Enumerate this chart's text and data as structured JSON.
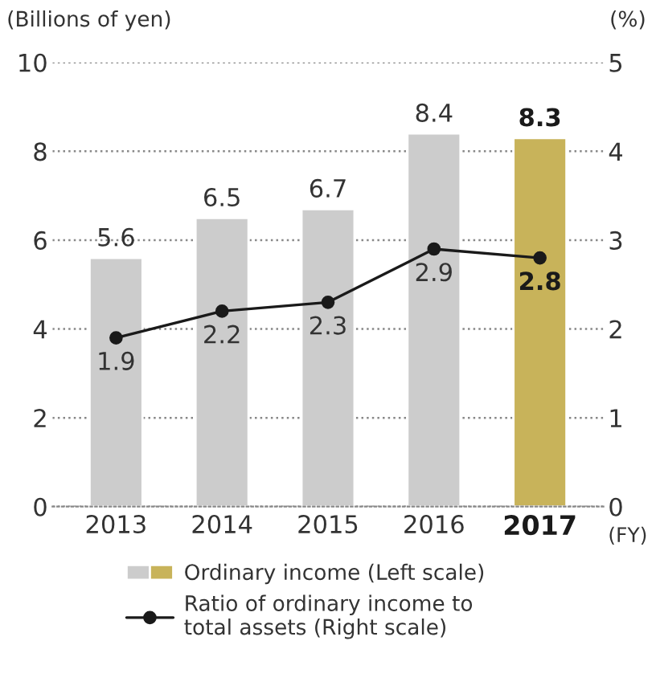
{
  "chart_data": {
    "type": "bar",
    "categories": [
      "2013",
      "2014",
      "2015",
      "2016",
      "2017"
    ],
    "xlabel": "(FY)",
    "ylabel": "(Billions of yen)",
    "y2label": "(%)",
    "series": [
      {
        "name": "Ordinary income (Left scale)",
        "colors": [
          "#cccccc",
          "#cccccc",
          "#cccccc",
          "#cccccc",
          "#c8b35a"
        ],
        "values": [
          5.6,
          6.5,
          6.7,
          8.4,
          8.3
        ]
      },
      {
        "name": "Ratio of ordinary income to\ntotal assets (Right scale)",
        "type": "line",
        "axis": "y2",
        "color": "#1a1a1a",
        "marker": "circle",
        "values": [
          1.9,
          2.2,
          2.3,
          2.9,
          2.8
        ]
      }
    ],
    "ylim": [
      0,
      10
    ],
    "yticks": [
      0,
      2,
      4,
      6,
      8,
      10
    ],
    "y2lim": [
      0,
      5
    ],
    "y2ticks": [
      0,
      1,
      2,
      3,
      4,
      5
    ],
    "data_labels": true,
    "grid": "y",
    "legend": "bottom"
  }
}
